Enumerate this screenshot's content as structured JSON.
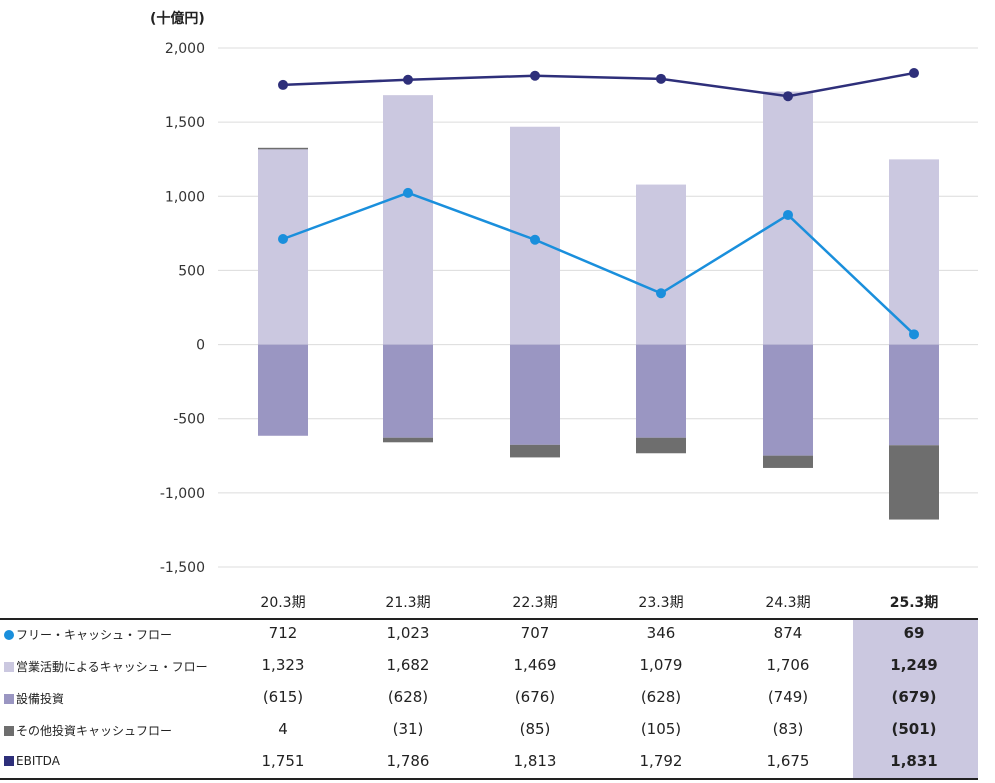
{
  "chart_data": {
    "type": "bar+line",
    "unit_label": "(十億円)",
    "categories": [
      "20.3期",
      "21.3期",
      "22.3期",
      "23.3期",
      "24.3期",
      "25.3期"
    ],
    "highlight_category": "25.3期",
    "ylim": [
      -1500,
      2000
    ],
    "yticks": [
      "2,000",
      "1,500",
      "1,000",
      "500",
      "0",
      "-500",
      "-1,000",
      "-1,500"
    ],
    "ytick_values": [
      2000,
      1500,
      1000,
      500,
      0,
      -500,
      -1000,
      -1500
    ],
    "grid": true,
    "series": [
      {
        "name": "フリー・キャッシュ・フロー",
        "kind": "line",
        "color": "#1a8fdc",
        "marker": "dot",
        "values": [
          712,
          1023,
          707,
          346,
          874,
          69
        ],
        "display": [
          "712",
          "1,023",
          "707",
          "346",
          "874",
          "69"
        ]
      },
      {
        "name": "営業活動によるキャッシュ・フロー",
        "kind": "bar",
        "color": "#cbc8e0",
        "marker": "square",
        "values": [
          1323,
          1682,
          1469,
          1079,
          1706,
          1249
        ],
        "display": [
          "1,323",
          "1,682",
          "1,469",
          "1,079",
          "1,706",
          "1,249"
        ]
      },
      {
        "name": "設備投資",
        "kind": "bar",
        "color": "#9a96c2",
        "marker": "square",
        "values": [
          -615,
          -628,
          -676,
          -628,
          -749,
          -679
        ],
        "display": [
          "(615)",
          "(628)",
          "(676)",
          "(628)",
          "(749)",
          "(679)"
        ]
      },
      {
        "name": "その他投資キャッシュフロー",
        "kind": "bar",
        "color": "#6e6e6e",
        "marker": "square",
        "values": [
          4,
          -31,
          -85,
          -105,
          -83,
          -501
        ],
        "display": [
          "4",
          "(31)",
          "(85)",
          "(105)",
          "(83)",
          "(501)"
        ]
      },
      {
        "name": "EBITDA",
        "kind": "line",
        "color": "#2e2f7a",
        "marker": "square",
        "values": [
          1751,
          1786,
          1813,
          1792,
          1675,
          1831
        ],
        "display": [
          "1,751",
          "1,786",
          "1,813",
          "1,792",
          "1,675",
          "1,831"
        ]
      }
    ]
  }
}
